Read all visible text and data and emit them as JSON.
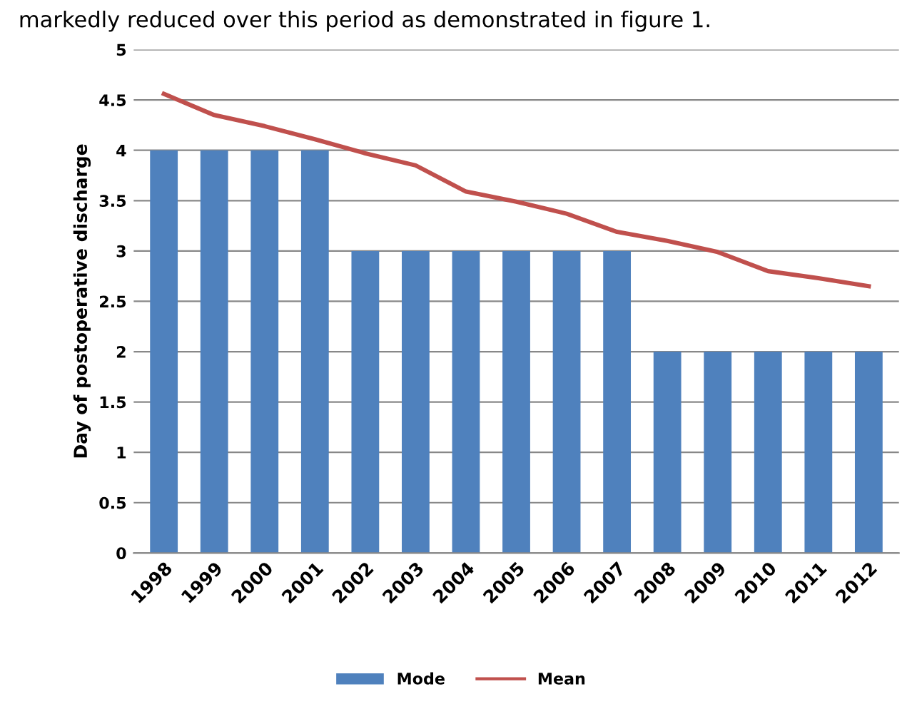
{
  "chart_data": {
    "type": "bar",
    "ylabel": "Day of postoperative discharge",
    "categories": [
      "1998",
      "1999",
      "2000",
      "2001",
      "2002",
      "2003",
      "2004",
      "2005",
      "2006",
      "2007",
      "2008",
      "2009",
      "2010",
      "2011",
      "2012"
    ],
    "series": [
      {
        "name": "Mode",
        "color": "#4f81bd",
        "values": [
          4,
          4,
          4,
          4,
          3,
          3,
          3,
          3,
          3,
          3,
          2,
          2,
          2,
          2,
          2
        ]
      },
      {
        "name": "Mean",
        "type": "line",
        "color": "#c0504d",
        "values": [
          4.56,
          4.35,
          4.24,
          4.11,
          3.97,
          3.85,
          3.59,
          3.49,
          3.37,
          3.19,
          3.1,
          2.99,
          2.8,
          2.73,
          2.65
        ]
      }
    ],
    "ylim": [
      0,
      5
    ],
    "yticks": [
      0,
      0.5,
      1,
      1.5,
      2,
      2.5,
      3,
      3.5,
      4,
      4.5,
      5
    ],
    "grid": "y",
    "legend": "bottom",
    "marker": "none",
    "annotations": [
      "markedly reduced over this period as demonstrated in figure 1."
    ]
  }
}
